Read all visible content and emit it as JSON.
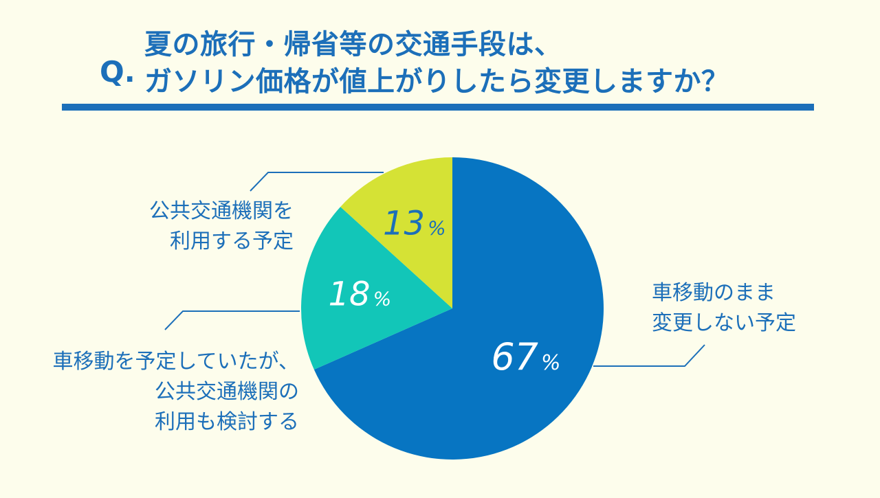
{
  "header": {
    "q_mark": "Q.",
    "line1": "夏の旅行・帰省等の交通手段は、",
    "line2": "ガソリン価格が値上がりしたら変更しますか？"
  },
  "colors": {
    "background": "#FDFDEC",
    "accent": "#1C6FB9",
    "slice_car": "#0775C2",
    "slice_considering": "#12C6B8",
    "slice_public": "#D5E235",
    "pct_dark": "#1C6FB9",
    "pct_light": "#FFFFFF"
  },
  "chart_data": {
    "type": "pie",
    "slices": [
      {
        "label": "車移動のまま変更しない予定",
        "label_lines": [
          "車移動のまま",
          "変更しない予定"
        ],
        "value": 67,
        "display": "67",
        "unit": "%"
      },
      {
        "label": "車移動を予定していたが、公共交通機関の利用も検討する",
        "label_lines": [
          "車移動を予定していたが、",
          "公共交通機関の",
          "利用も検討する"
        ],
        "value": 18,
        "display": "18",
        "unit": "%"
      },
      {
        "label": "公共交通機関を利用する予定",
        "label_lines": [
          "公共交通機関を",
          "利用する予定"
        ],
        "value": 13,
        "display": "13",
        "unit": "%"
      }
    ],
    "start": "12 o'clock",
    "direction": "clockwise",
    "legend": "none"
  }
}
